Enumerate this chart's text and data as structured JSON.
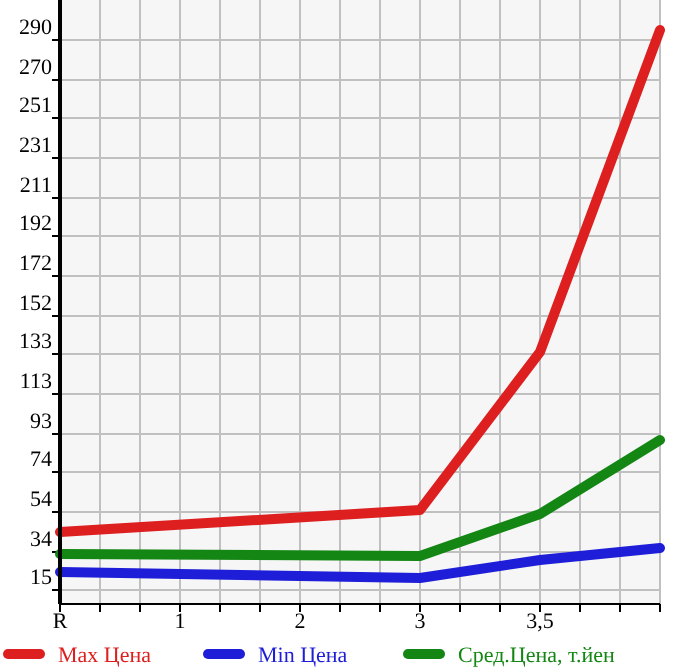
{
  "chart_data": {
    "type": "line",
    "categories": [
      "R",
      "1",
      "2",
      "3",
      "3,5",
      null
    ],
    "series": [
      {
        "name": "Max Цена",
        "color": "#dd1f1f",
        "values": [
          44,
          null,
          null,
          55,
          134,
          295
        ]
      },
      {
        "name": "Min Цена",
        "color": "#1e1ed8",
        "values": [
          24,
          null,
          null,
          21,
          30,
          36
        ]
      },
      {
        "name": "Сред.Цена, т.йен",
        "color": "#138613",
        "values": [
          33,
          null,
          null,
          32,
          53,
          90
        ]
      }
    ],
    "ylim": [
      8,
      310
    ],
    "yticks": [
      15,
      34,
      54,
      74,
      93,
      113,
      133,
      152,
      172,
      192,
      211,
      231,
      251,
      270,
      290
    ],
    "grid": true,
    "legend": "bottom",
    "marker": "none",
    "line_style": "solid"
  }
}
